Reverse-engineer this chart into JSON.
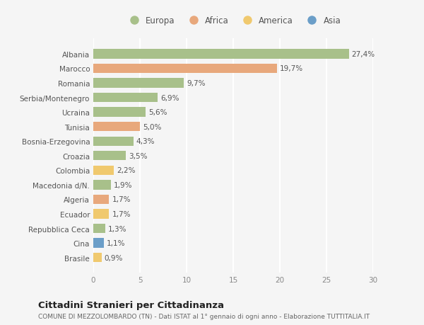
{
  "categories": [
    "Brasile",
    "Cina",
    "Repubblica Ceca",
    "Ecuador",
    "Algeria",
    "Macedonia d/N.",
    "Colombia",
    "Croazia",
    "Bosnia-Erzegovina",
    "Tunisia",
    "Ucraina",
    "Serbia/Montenegro",
    "Romania",
    "Marocco",
    "Albania"
  ],
  "values": [
    0.9,
    1.1,
    1.3,
    1.7,
    1.7,
    1.9,
    2.2,
    3.5,
    4.3,
    5.0,
    5.6,
    6.9,
    9.7,
    19.7,
    27.4
  ],
  "labels": [
    "0,9%",
    "1,1%",
    "1,3%",
    "1,7%",
    "1,7%",
    "1,9%",
    "2,2%",
    "3,5%",
    "4,3%",
    "5,0%",
    "5,6%",
    "6,9%",
    "9,7%",
    "19,7%",
    "27,4%"
  ],
  "continent": [
    "America",
    "Asia",
    "Europa",
    "America",
    "Africa",
    "Europa",
    "America",
    "Europa",
    "Europa",
    "Africa",
    "Europa",
    "Europa",
    "Europa",
    "Africa",
    "Europa"
  ],
  "colors": {
    "Europa": "#a8c08a",
    "Africa": "#e8a87c",
    "America": "#f0c96e",
    "Asia": "#6b9ec8"
  },
  "legend": [
    "Europa",
    "Africa",
    "America",
    "Asia"
  ],
  "legend_colors": [
    "#a8c08a",
    "#e8a87c",
    "#f0c96e",
    "#6b9ec8"
  ],
  "xlim": [
    0,
    30
  ],
  "xticks": [
    0,
    5,
    10,
    15,
    20,
    25,
    30
  ],
  "title": "Cittadini Stranieri per Cittadinanza",
  "subtitle": "COMUNE DI MEZZOLOMBARDO (TN) - Dati ISTAT al 1° gennaio di ogni anno - Elaborazione TUTTITALIA.IT",
  "background_color": "#f5f5f5",
  "bar_height": 0.65,
  "grid_color": "#ffffff",
  "title_fontsize": 9.5,
  "subtitle_fontsize": 6.5,
  "label_fontsize": 7.5,
  "tick_fontsize": 7.5,
  "legend_fontsize": 8.5
}
